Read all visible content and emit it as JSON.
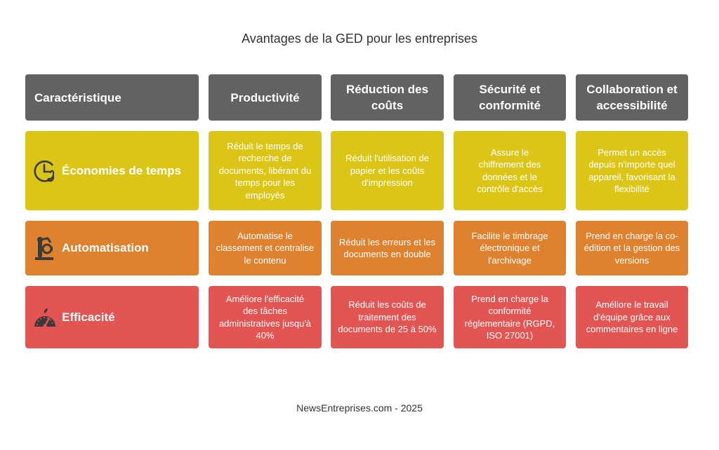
{
  "title": "Avantages de la GED pour les entreprises",
  "footer": "NewsEntreprises.com - 2025",
  "colors": {
    "header": "#626262",
    "row1": "#dbc618",
    "row2": "#df8230",
    "row3": "#e25553",
    "icon": "#3a3a3a"
  },
  "headers": [
    "Caractéristique",
    "Productivité",
    "Réduction des coûts",
    "Sécurité et conformité",
    "Collaboration et accessibilité"
  ],
  "rows": [
    {
      "label": "Économies de temps",
      "icon": "clock-hand-icon",
      "cells": [
        "Réduit le temps de recherche de documents, libérant du temps pour les employés",
        "Réduit l'utilisation de papier et les coûts d'impression",
        "Assure le chiffrement des données et le contrôle d'accès",
        "Permet un accès depuis n'importe quel appareil, favorisant la flexibilité"
      ]
    },
    {
      "label": "Automatisation",
      "icon": "robot-arm-icon",
      "cells": [
        "Automatise le classement et centralise le contenu",
        "Réduit les erreurs et les documents en double",
        "Facilite le timbrage électronique et l'archivage",
        "Prend en charge la co-édition et la gestion des versions"
      ]
    },
    {
      "label": "Efficacité",
      "icon": "speedometer-icon",
      "cells": [
        "Améliore l'efficacité des tâches administratives jusqu'à 40%",
        "Réduit les coûts de traitement des documents de 25 à 50%",
        "Prend en charge la conformité réglementaire (RGPD, ISO 27001)",
        "Améliore le travail d'équipe grâce aux commentaires en ligne"
      ]
    }
  ]
}
